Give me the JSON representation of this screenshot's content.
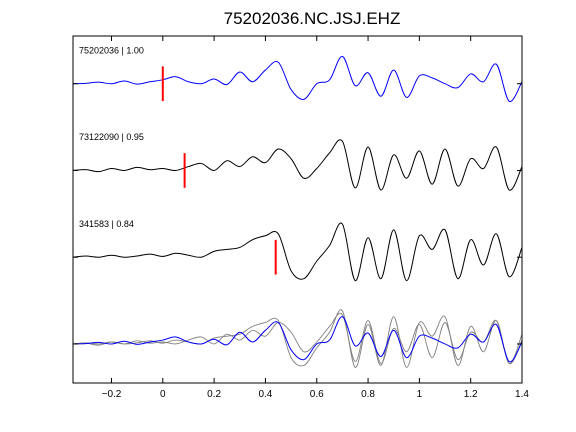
{
  "chart_data": {
    "type": "line",
    "title": "75202036.NC.JSJ.EHZ",
    "xlabel": "",
    "ylabel": "",
    "xlim": [
      -0.35,
      1.4
    ],
    "xticks": [
      -0.2,
      0,
      0.2,
      0.4,
      0.6,
      0.8,
      1,
      1.2,
      1.4
    ],
    "xtick_labels": [
      "−0.2",
      "0",
      "0.2",
      "0.4",
      "0.6",
      "0.8",
      "1",
      "1.2",
      "1.4"
    ],
    "ylim": [
      0,
      4
    ],
    "yticks": [
      0.45,
      1.45,
      2.45,
      3.45
    ],
    "grid": false,
    "legend": "none",
    "colors": {
      "reference": "#0000ff",
      "match": "#000000",
      "match_overlay": "#808080",
      "pick": "#ff0000"
    },
    "series": [
      {
        "name": "75202036 | 1.00",
        "label": "75202036 | 1.00",
        "color": "#0000ff",
        "baseline": 3.45,
        "pick_time": 0.0,
        "t": [
          -0.35,
          -0.3,
          -0.25,
          -0.2,
          -0.15,
          -0.1,
          -0.05,
          0.0,
          0.05,
          0.1,
          0.15,
          0.2,
          0.25,
          0.3,
          0.35,
          0.4,
          0.45,
          0.5,
          0.55,
          0.6,
          0.65,
          0.7,
          0.75,
          0.8,
          0.85,
          0.9,
          0.95,
          1.0,
          1.05,
          1.1,
          1.15,
          1.2,
          1.25,
          1.3,
          1.35,
          1.4
        ],
        "y": [
          0.0,
          0.01,
          0.04,
          0.0,
          0.07,
          -0.01,
          0.05,
          0.1,
          0.18,
          0.05,
          0.0,
          0.12,
          -0.02,
          0.3,
          0.05,
          0.35,
          0.55,
          -0.15,
          -0.4,
          0.0,
          0.1,
          0.7,
          -0.05,
          0.28,
          -0.32,
          0.35,
          -0.35,
          0.2,
          0.15,
          0.0,
          -0.1,
          0.25,
          0.05,
          0.5,
          -0.45,
          0.05
        ]
      },
      {
        "name": "73122090 | 0.95",
        "label": "73122090 | 0.95",
        "color": "#000000",
        "baseline": 2.45,
        "pick_time": 0.085,
        "t": [
          -0.35,
          -0.3,
          -0.25,
          -0.2,
          -0.15,
          -0.1,
          -0.05,
          0.0,
          0.05,
          0.1,
          0.15,
          0.2,
          0.25,
          0.3,
          0.35,
          0.4,
          0.45,
          0.5,
          0.55,
          0.6,
          0.65,
          0.7,
          0.75,
          0.8,
          0.85,
          0.9,
          0.95,
          1.0,
          1.05,
          1.1,
          1.15,
          1.2,
          1.25,
          1.3,
          1.35,
          1.4
        ],
        "y": [
          0.0,
          0.02,
          -0.03,
          0.05,
          0.0,
          0.08,
          0.02,
          0.05,
          0.0,
          0.1,
          0.18,
          0.0,
          0.25,
          0.1,
          0.35,
          0.2,
          0.55,
          0.3,
          -0.2,
          0.05,
          0.45,
          0.75,
          -0.45,
          0.6,
          -0.5,
          0.4,
          -0.2,
          0.5,
          -0.35,
          0.55,
          -0.4,
          0.3,
          0.05,
          0.6,
          -0.5,
          0.1
        ]
      },
      {
        "name": "341583 | 0.84",
        "label": "341583 | 0.84",
        "color": "#000000",
        "baseline": 1.45,
        "pick_time": 0.44,
        "t": [
          -0.35,
          -0.3,
          -0.25,
          -0.2,
          -0.15,
          -0.1,
          -0.05,
          0.0,
          0.05,
          0.1,
          0.15,
          0.2,
          0.25,
          0.3,
          0.35,
          0.4,
          0.45,
          0.5,
          0.55,
          0.6,
          0.65,
          0.7,
          0.75,
          0.8,
          0.85,
          0.9,
          0.95,
          1.0,
          1.05,
          1.1,
          1.15,
          1.2,
          1.25,
          1.3,
          1.35,
          1.4
        ],
        "y": [
          0.0,
          0.03,
          0.0,
          0.05,
          0.0,
          0.03,
          0.08,
          0.02,
          0.1,
          0.05,
          0.0,
          0.15,
          0.2,
          0.25,
          0.45,
          0.55,
          0.6,
          -0.35,
          -0.55,
          -0.1,
          0.3,
          0.85,
          -0.6,
          0.5,
          -0.55,
          0.7,
          -0.6,
          0.55,
          0.2,
          0.7,
          -0.55,
          0.45,
          -0.2,
          0.6,
          -0.5,
          0.25
        ]
      }
    ],
    "stack": {
      "baseline": 0.45,
      "traces": [
        {
          "of": "75202036 | 1.00",
          "color": "#0000ff"
        },
        {
          "of": "73122090 | 0.95",
          "color": "#808080"
        },
        {
          "of": "341583 | 0.84",
          "color": "#808080"
        }
      ]
    }
  }
}
